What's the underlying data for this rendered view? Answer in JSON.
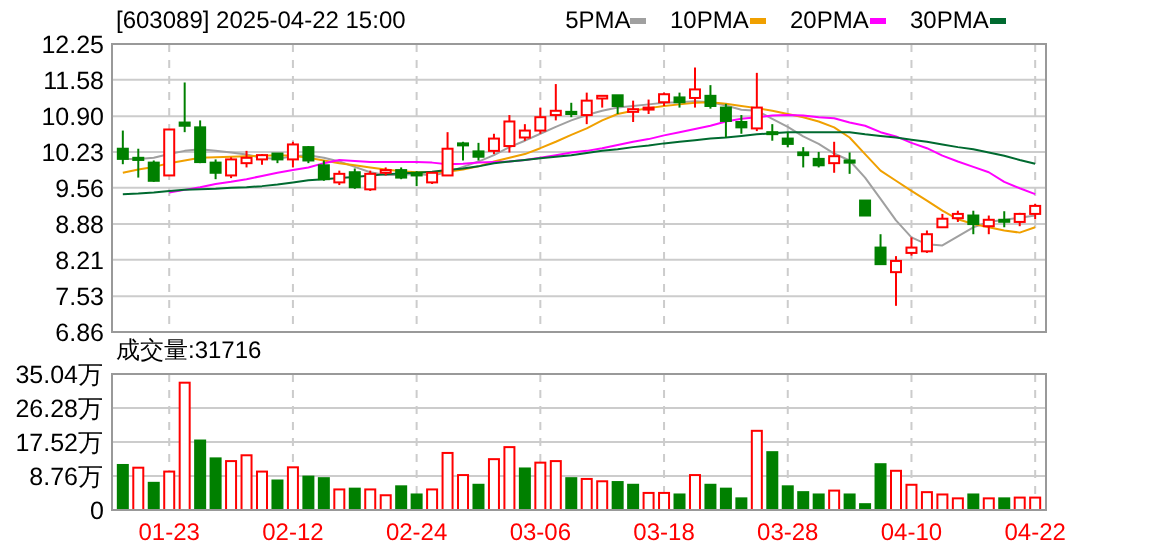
{
  "chart_data": [
    {
      "type": "candlestick",
      "title": "[603089] 2025-04-22 15:00",
      "grid": true,
      "legend": "top right",
      "tick_labels": "y",
      "categories": [
        null,
        null,
        null,
        null,
        null,
        null,
        null,
        null,
        null,
        null,
        null,
        null,
        null,
        null,
        null,
        null,
        null,
        null,
        null,
        null,
        null,
        null,
        null,
        null,
        null,
        null,
        null,
        null,
        null,
        null,
        null,
        null,
        null,
        null,
        null,
        null,
        null,
        null,
        null,
        null,
        null,
        null,
        null,
        null,
        null,
        null,
        null,
        null,
        null,
        null,
        null,
        null,
        null,
        null,
        null,
        null,
        null,
        null,
        null,
        null
      ],
      "ohlc": [
        [
          10.29,
          10.63,
          10.0,
          10.1
        ],
        [
          10.12,
          10.29,
          9.75,
          10.08
        ],
        [
          10.03,
          10.07,
          9.67,
          9.69
        ],
        [
          9.79,
          10.65,
          9.79,
          10.65
        ],
        [
          10.78,
          11.53,
          10.6,
          10.72
        ],
        [
          10.69,
          10.82,
          10.02,
          10.04
        ],
        [
          10.03,
          10.09,
          9.72,
          9.84
        ],
        [
          9.79,
          10.13,
          9.74,
          10.09
        ],
        [
          10.02,
          10.25,
          9.94,
          10.12
        ],
        [
          10.09,
          10.19,
          9.99,
          10.17
        ],
        [
          10.2,
          10.21,
          10.02,
          10.09
        ],
        [
          10.09,
          10.42,
          9.94,
          10.37
        ],
        [
          10.32,
          10.34,
          10.02,
          10.07
        ],
        [
          9.98,
          10.07,
          9.69,
          9.72
        ],
        [
          9.66,
          9.88,
          9.61,
          9.82
        ],
        [
          9.85,
          9.92,
          9.54,
          9.57
        ],
        [
          9.53,
          9.88,
          9.5,
          9.82
        ],
        [
          9.84,
          9.94,
          9.79,
          9.89
        ],
        [
          9.89,
          9.94,
          9.72,
          9.75
        ],
        [
          9.84,
          9.87,
          9.59,
          9.79
        ],
        [
          9.66,
          9.84,
          9.63,
          9.84
        ],
        [
          9.79,
          10.6,
          9.79,
          10.29
        ],
        [
          10.39,
          10.42,
          10.07,
          10.37
        ],
        [
          10.24,
          10.4,
          10.07,
          10.14
        ],
        [
          10.25,
          10.57,
          10.19,
          10.48
        ],
        [
          10.34,
          10.92,
          10.22,
          10.8
        ],
        [
          10.5,
          10.75,
          10.44,
          10.63
        ],
        [
          10.63,
          11.06,
          10.57,
          10.88
        ],
        [
          10.92,
          11.5,
          10.82,
          11.0
        ],
        [
          10.98,
          11.15,
          10.88,
          10.94
        ],
        [
          10.92,
          11.34,
          10.75,
          11.19
        ],
        [
          11.23,
          11.28,
          11.06,
          11.28
        ],
        [
          11.29,
          11.29,
          10.94,
          11.09
        ],
        [
          10.98,
          11.19,
          10.79,
          11.03
        ],
        [
          11.04,
          11.21,
          10.94,
          11.06
        ],
        [
          11.16,
          11.34,
          11.09,
          11.31
        ],
        [
          11.25,
          11.34,
          11.06,
          11.16
        ],
        [
          11.24,
          11.81,
          11.06,
          11.4
        ],
        [
          11.28,
          11.48,
          11.04,
          11.09
        ],
        [
          11.06,
          11.13,
          10.5,
          10.81
        ],
        [
          10.79,
          10.92,
          10.57,
          10.69
        ],
        [
          10.67,
          11.71,
          10.62,
          11.06
        ],
        [
          10.6,
          10.75,
          10.44,
          10.58
        ],
        [
          10.48,
          10.6,
          10.32,
          10.38
        ],
        [
          10.22,
          10.32,
          9.94,
          10.17
        ],
        [
          10.1,
          10.23,
          9.94,
          9.98
        ],
        [
          10.02,
          10.42,
          9.84,
          10.15
        ],
        [
          10.07,
          10.22,
          9.82,
          10.03
        ],
        [
          9.32,
          9.32,
          9.04,
          9.04
        ],
        [
          8.44,
          8.69,
          8.13,
          8.13
        ],
        [
          7.98,
          8.28,
          7.35,
          8.19
        ],
        [
          8.34,
          8.63,
          8.29,
          8.44
        ],
        [
          8.37,
          8.76,
          8.34,
          8.69
        ],
        [
          8.82,
          9.07,
          8.82,
          8.98
        ],
        [
          8.99,
          9.13,
          8.92,
          9.07
        ],
        [
          9.04,
          9.13,
          8.69,
          8.88
        ],
        [
          8.84,
          9.04,
          8.69,
          8.96
        ],
        [
          8.96,
          9.12,
          8.82,
          8.94
        ],
        [
          8.92,
          9.09,
          8.84,
          9.07
        ],
        [
          9.07,
          9.26,
          8.97,
          9.22
        ]
      ],
      "colors": [
        "#008000",
        "#008000",
        "#008000",
        "#ff0000",
        "#008000",
        "#008000",
        "#008000",
        "#ff0000",
        "#ff0000",
        "#ff0000",
        "#008000",
        "#ff0000",
        "#008000",
        "#008000",
        "#ff0000",
        "#008000",
        "#ff0000",
        "#ff0000",
        "#008000",
        "#008000",
        "#ff0000",
        "#ff0000",
        "#008000",
        "#008000",
        "#ff0000",
        "#ff0000",
        "#ff0000",
        "#ff0000",
        "#ff0000",
        "#008000",
        "#ff0000",
        "#ff0000",
        "#008000",
        "#ff0000",
        "#ff0000",
        "#ff0000",
        "#008000",
        "#ff0000",
        "#008000",
        "#008000",
        "#008000",
        "#ff0000",
        "#008000",
        "#008000",
        "#008000",
        "#008000",
        "#ff0000",
        "#008000",
        "#008000",
        "#008000",
        "#ff0000",
        "#ff0000",
        "#ff0000",
        "#ff0000",
        "#ff0000",
        "#008000",
        "#ff0000",
        "#008000",
        "#ff0000",
        "#ff0000"
      ],
      "series": [
        {
          "type": "line",
          "name": "5PMA",
          "color": "#a0a0a0",
          "values": [
            10.1,
            10.1,
            10.12,
            10.19,
            10.25,
            10.28,
            10.25,
            10.22,
            10.18,
            10.12,
            10.1,
            10.15,
            10.17,
            10.12,
            10.05,
            9.95,
            9.85,
            9.8,
            9.8,
            9.82,
            9.79,
            9.85,
            9.95,
            10.05,
            10.17,
            10.32,
            10.44,
            10.57,
            10.7,
            10.82,
            10.92,
            11.0,
            11.06,
            11.09,
            11.12,
            11.15,
            11.16,
            11.18,
            11.16,
            11.1,
            11.02,
            11.0,
            10.85,
            10.7,
            10.52,
            10.38,
            10.2,
            10.07,
            9.75,
            9.35,
            8.95,
            8.63,
            8.5,
            8.48,
            8.65,
            8.82,
            8.92,
            8.96,
            9.0,
            9.04
          ]
        },
        {
          "type": "line",
          "name": "10PMA",
          "color": "#f0a000",
          "values": [
            9.84,
            9.9,
            9.95,
            10.02,
            10.07,
            10.12,
            10.13,
            10.14,
            10.15,
            10.16,
            10.17,
            10.16,
            10.12,
            10.07,
            10.02,
            9.98,
            9.94,
            9.9,
            9.87,
            9.85,
            9.85,
            9.86,
            9.9,
            9.96,
            10.05,
            10.12,
            10.19,
            10.3,
            10.42,
            10.55,
            10.67,
            10.82,
            10.94,
            11.0,
            11.05,
            11.09,
            11.12,
            11.15,
            11.16,
            11.13,
            11.09,
            11.05,
            11.0,
            10.94,
            10.88,
            10.8,
            10.69,
            10.5,
            10.19,
            9.88,
            9.69,
            9.5,
            9.32,
            9.13,
            8.97,
            8.88,
            8.82,
            8.76,
            8.72,
            8.82
          ]
        },
        {
          "type": "line",
          "name": "20PMA",
          "color": "#ff00ff",
          "values": [
            null,
            null,
            null,
            9.47,
            9.52,
            9.57,
            9.63,
            9.67,
            9.72,
            9.78,
            9.84,
            9.89,
            9.94,
            10.02,
            10.08,
            10.06,
            10.04,
            10.04,
            10.04,
            10.04,
            10.03,
            10.0,
            10.01,
            10.03,
            10.04,
            10.05,
            10.08,
            10.12,
            10.17,
            10.22,
            10.25,
            10.3,
            10.36,
            10.42,
            10.47,
            10.54,
            10.6,
            10.66,
            10.72,
            10.8,
            10.85,
            10.88,
            10.91,
            10.92,
            10.91,
            10.88,
            10.86,
            10.78,
            10.72,
            10.6,
            10.52,
            10.4,
            10.3,
            10.16,
            10.05,
            9.95,
            9.85,
            9.67,
            9.55,
            9.44
          ]
        },
        {
          "type": "line",
          "name": "30PMA",
          "color": "#006a30",
          "values": [
            9.44,
            9.45,
            9.47,
            9.5,
            9.52,
            9.53,
            9.54,
            9.56,
            9.57,
            9.59,
            9.62,
            9.66,
            9.7,
            9.72,
            9.74,
            9.76,
            9.79,
            9.81,
            9.83,
            9.84,
            9.86,
            9.89,
            9.92,
            9.96,
            10.02,
            10.05,
            10.08,
            10.11,
            10.14,
            10.17,
            10.21,
            10.25,
            10.28,
            10.32,
            10.35,
            10.39,
            10.42,
            10.45,
            10.48,
            10.5,
            10.53,
            10.56,
            10.58,
            10.6,
            10.6,
            10.6,
            10.6,
            10.6,
            10.56,
            10.53,
            10.5,
            10.46,
            10.42,
            10.37,
            10.32,
            10.28,
            10.22,
            10.16,
            10.08,
            10.01
          ]
        }
      ],
      "ylim": [
        6.86,
        12.25
      ],
      "yticks": [
        6.86,
        7.53,
        8.21,
        8.88,
        9.56,
        10.23,
        {
          "value": 10.9,
          "label": "10.90"
        },
        11.58,
        12.25
      ]
    },
    {
      "type": "bar",
      "title": "成交量:31716",
      "grid": true,
      "categories": [
        null,
        null,
        null,
        "01-23",
        null,
        null,
        null,
        null,
        null,
        null,
        null,
        "02-12",
        null,
        null,
        null,
        null,
        null,
        null,
        null,
        "02-24",
        null,
        null,
        null,
        null,
        null,
        null,
        null,
        "03-06",
        null,
        null,
        null,
        null,
        null,
        null,
        null,
        "03-18",
        null,
        null,
        null,
        null,
        null,
        null,
        null,
        "03-28",
        null,
        null,
        null,
        null,
        null,
        null,
        null,
        "04-10",
        null,
        null,
        null,
        null,
        null,
        null,
        null,
        "04-22"
      ],
      "values": [
        11.6,
        10.9,
        7.0,
        9.9,
        32.8,
        17.9,
        13.3,
        12.6,
        14.1,
        9.9,
        7.6,
        11.0,
        8.6,
        8.2,
        5.3,
        5.5,
        5.3,
        3.8,
        6.1,
        4.0,
        5.3,
        14.7,
        9.0,
        6.5,
        13.1,
        16.2,
        10.7,
        12.2,
        12.6,
        8.2,
        8.0,
        7.4,
        7.2,
        6.5,
        4.4,
        4.4,
        4.0,
        9.0,
        6.5,
        5.5,
        3.0,
        20.4,
        14.9,
        6.1,
        4.6,
        4.0,
        5.0,
        4.0,
        1.5,
        11.8,
        10.1,
        6.5,
        4.6,
        4.0,
        3.0,
        4.0,
        3.0,
        3.0,
        3.2,
        3.2
      ],
      "colors": [
        "#008000",
        "#ff0000",
        "#008000",
        "#ff0000",
        "#ff0000",
        "#008000",
        "#008000",
        "#ff0000",
        "#ff0000",
        "#ff0000",
        "#008000",
        "#ff0000",
        "#008000",
        "#008000",
        "#ff0000",
        "#008000",
        "#ff0000",
        "#ff0000",
        "#008000",
        "#008000",
        "#ff0000",
        "#ff0000",
        "#ff0000",
        "#008000",
        "#ff0000",
        "#ff0000",
        "#008000",
        "#ff0000",
        "#ff0000",
        "#008000",
        "#ff0000",
        "#ff0000",
        "#008000",
        "#008000",
        "#ff0000",
        "#ff0000",
        "#008000",
        "#ff0000",
        "#008000",
        "#008000",
        "#008000",
        "#ff0000",
        "#008000",
        "#008000",
        "#008000",
        "#008000",
        "#ff0000",
        "#008000",
        "#008000",
        "#008000",
        "#ff0000",
        "#ff0000",
        "#ff0000",
        "#ff0000",
        "#ff0000",
        "#008000",
        "#ff0000",
        "#008000",
        "#ff0000",
        "#ff0000"
      ],
      "ylim": [
        0,
        35.04
      ],
      "yticks": [
        0,
        {
          "value": 8.76,
          "label": "8.76万"
        },
        {
          "value": 17.52,
          "label": "17.52万"
        },
        {
          "value": 26.28,
          "label": "26.28万"
        },
        {
          "value": 35.04,
          "label": "35.04万"
        }
      ]
    }
  ]
}
